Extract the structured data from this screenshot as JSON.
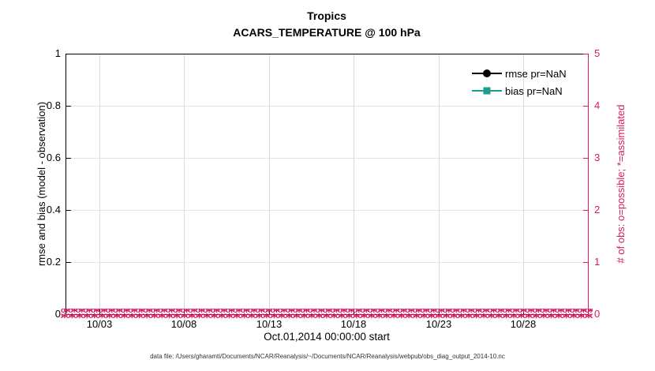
{
  "window": {
    "kind": "matlab-figure-plot"
  },
  "title": {
    "line1": "Tropics",
    "line2": "ACARS_TEMPERATURE @ 100 hPa"
  },
  "axes": {
    "left": {
      "label": "rmse and bias (model - observation)",
      "ticks": [
        "0",
        "0.2",
        "0.4",
        "0.6",
        "0.8",
        "1"
      ],
      "color": "#000000"
    },
    "right": {
      "label": "# of obs: o=possible; *=assimilated",
      "ticks": [
        "0",
        "1",
        "2",
        "3",
        "4",
        "5"
      ],
      "color": "#d91b62"
    },
    "x": {
      "label": "Oct.01,2014 00:00:00 start",
      "ticks": [
        "10/03",
        "10/08",
        "10/13",
        "10/18",
        "10/23",
        "10/28"
      ]
    }
  },
  "legend": {
    "items": [
      {
        "label": "rmse pr=NaN",
        "color": "#000000",
        "marker": "circle"
      },
      {
        "label": "bias pr=NaN",
        "color": "#1b9e8c",
        "marker": "square"
      }
    ]
  },
  "footer": "data file: /Users/gharamti/Documents/NCAR/Reanalysis/~/Documents/NCAR/Reanalysis/webpub/obs_diag_output_2014-10.nc",
  "chart_data": {
    "type": "line",
    "title": "Tropics",
    "subtitle": "ACARS_TEMPERATURE @ 100 hPa",
    "xlabel": "Oct.01,2014 00:00:00 start",
    "x_tick_labels": [
      "10/03",
      "10/08",
      "10/13",
      "10/18",
      "10/23",
      "10/28"
    ],
    "x_range_days": [
      "2014-10-01",
      "2014-11-01"
    ],
    "ylabel_left": "rmse and bias (model - observation)",
    "ylim_left": [
      0,
      1
    ],
    "ylabel_right": "# of obs: o=possible; *=assimilated",
    "ylim_right": [
      0,
      5
    ],
    "grid": true,
    "legend_position": "top-right-inside",
    "series": [
      {
        "name": "rmse pr=NaN",
        "axis": "left",
        "color": "#000000",
        "marker": "circle",
        "values": "all NaN (no line drawn)"
      },
      {
        "name": "bias pr=NaN",
        "axis": "left",
        "color": "#1b9e8c",
        "marker": "square",
        "values": "all NaN (no line drawn)"
      },
      {
        "name": "# of obs possible",
        "axis": "right",
        "color": "#d91b62",
        "marker": "o",
        "value_constant": 0,
        "note": "dense markers at every time bin across whole month at y=0"
      },
      {
        "name": "# of obs assimilated",
        "axis": "right",
        "color": "#d91b62",
        "marker": "*",
        "value_constant": 0,
        "note": "dense markers at every time bin across whole month at y=0"
      }
    ],
    "band_markers": {
      "possible": "o",
      "assimilated": "∗"
    }
  }
}
